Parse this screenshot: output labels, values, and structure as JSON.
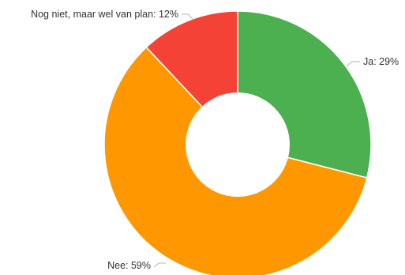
{
  "chart_data": {
    "type": "pie",
    "donut": true,
    "title": "",
    "slices": [
      {
        "label": "Ja: 29%",
        "value": 29,
        "color": "#4caf50"
      },
      {
        "label": "Nee: 59%",
        "value": 59,
        "color": "#ff9800"
      },
      {
        "label": "Nog niet, maar wel van plan: 12%",
        "value": 12,
        "color": "#f44336"
      }
    ],
    "start_angle_deg": 0,
    "direction": "clockwise",
    "legend": "none"
  }
}
